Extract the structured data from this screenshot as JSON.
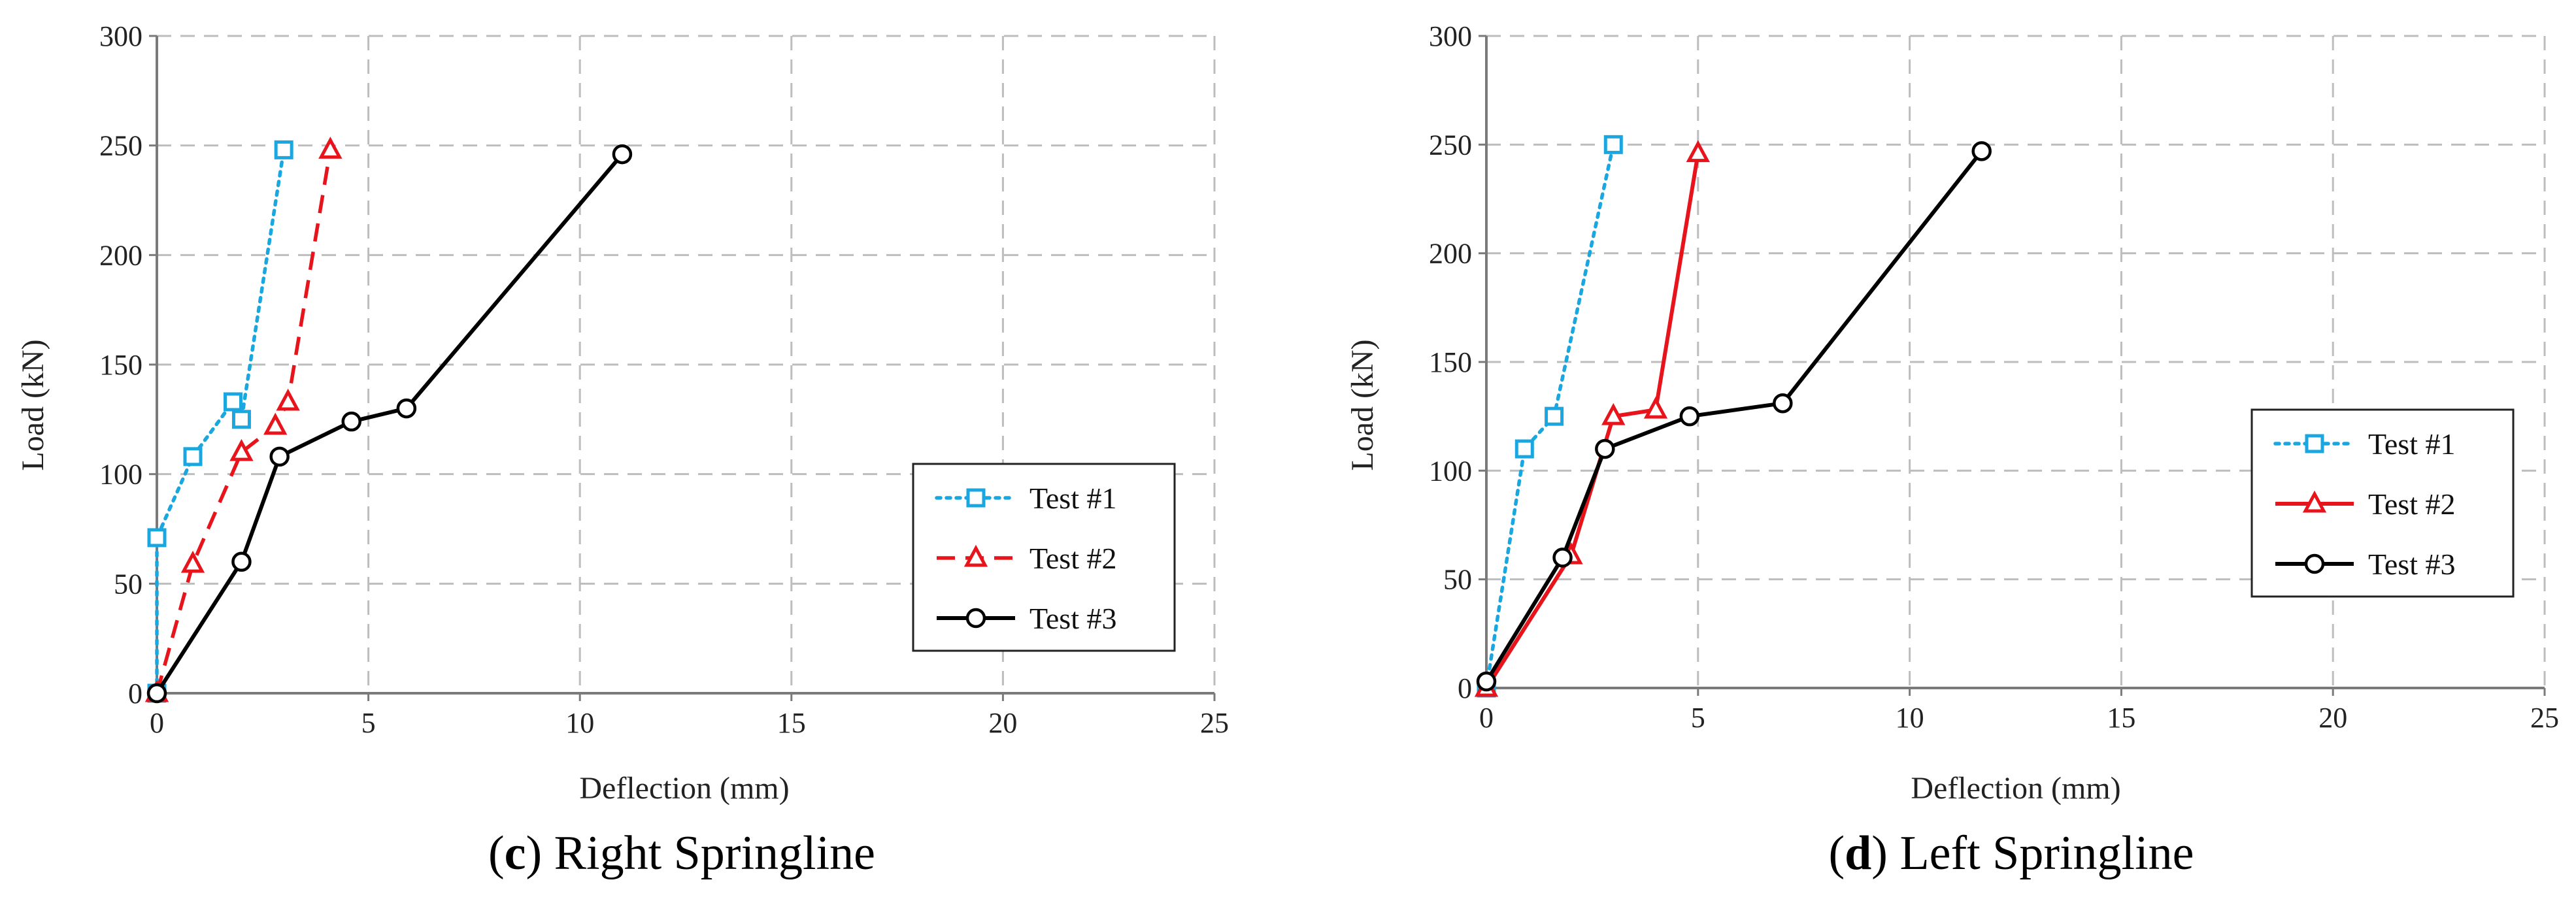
{
  "chart_data": [
    {
      "id": "c",
      "type": "line",
      "caption_letter": "c",
      "caption_text": " Right Springline",
      "xlabel": "Deflection (mm)",
      "ylabel": "Load (kN)",
      "xlim": [
        0,
        25
      ],
      "ylim": [
        0,
        300
      ],
      "xticks": [
        0,
        5,
        10,
        15,
        20,
        25
      ],
      "yticks": [
        0,
        50,
        100,
        150,
        200,
        250,
        300
      ],
      "grid": true,
      "legend_position": "right",
      "series": [
        {
          "name": "Test #1",
          "color": "#1aa7e0",
          "line_style": "dotted",
          "marker": "square",
          "x": [
            0,
            0,
            0.85,
            1.8,
            2.0,
            3.0
          ],
          "y": [
            0,
            71,
            108,
            133,
            125,
            248
          ]
        },
        {
          "name": "Test #2",
          "color": "#e8141c",
          "line_style": "dashed",
          "marker": "triangle",
          "x": [
            0,
            0.85,
            2.0,
            2.8,
            3.1,
            4.1
          ],
          "y": [
            0,
            59,
            110,
            122,
            133,
            248
          ]
        },
        {
          "name": "Test #3",
          "color": "#000000",
          "line_style": "solid",
          "marker": "circle",
          "x": [
            0,
            2.0,
            2.9,
            4.6,
            5.9,
            11.0
          ],
          "y": [
            0,
            60,
            108,
            124,
            130,
            246
          ]
        }
      ]
    },
    {
      "id": "d",
      "type": "line",
      "caption_letter": "d",
      "caption_text": " Left Springline",
      "xlabel": "Deflection (mm)",
      "ylabel": "Load (kN)",
      "xlim": [
        0,
        25
      ],
      "ylim": [
        0,
        300
      ],
      "xticks": [
        0,
        5,
        10,
        15,
        20,
        25
      ],
      "yticks": [
        0,
        50,
        100,
        150,
        200,
        250,
        300
      ],
      "grid": true,
      "legend_position": "right",
      "series": [
        {
          "name": "Test #1",
          "color": "#1aa7e0",
          "line_style": "dotted",
          "marker": "square",
          "x": [
            0,
            0.9,
            1.6,
            3.0
          ],
          "y": [
            0,
            110,
            125,
            250
          ]
        },
        {
          "name": "Test #2",
          "color": "#e8141c",
          "line_style": "solid",
          "marker": "triangle",
          "x": [
            0,
            2.0,
            3.0,
            4.0,
            5.0
          ],
          "y": [
            0,
            61,
            125,
            128,
            246
          ]
        },
        {
          "name": "Test #3",
          "color": "#000000",
          "line_style": "solid",
          "marker": "circle",
          "x": [
            0,
            1.8,
            2.8,
            4.8,
            7.0,
            11.7
          ],
          "y": [
            3,
            60,
            110,
            125,
            131,
            247
          ]
        }
      ]
    }
  ]
}
